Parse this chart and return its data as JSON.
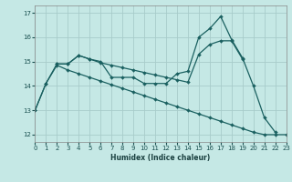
{
  "background_color": "#c5e8e5",
  "grid_color": "#a8ccca",
  "line_color": "#1a6060",
  "xlabel": "Humidex (Indice chaleur)",
  "xlim": [
    0,
    23
  ],
  "ylim": [
    11.7,
    17.3
  ],
  "yticks": [
    12,
    13,
    14,
    15,
    16,
    17
  ],
  "xticks": [
    0,
    1,
    2,
    3,
    4,
    5,
    6,
    7,
    8,
    9,
    10,
    11,
    12,
    13,
    14,
    15,
    16,
    17,
    18,
    19,
    20,
    21,
    22,
    23
  ],
  "line1_x": [
    0,
    1,
    2,
    3,
    4,
    5,
    6,
    7,
    8,
    9,
    10,
    11,
    12,
    13,
    14,
    15,
    16,
    17,
    18,
    19,
    20,
    21,
    22
  ],
  "line1_y": [
    13.0,
    14.1,
    14.9,
    14.9,
    15.25,
    15.1,
    15.0,
    14.35,
    14.35,
    14.35,
    14.1,
    14.1,
    14.1,
    14.5,
    14.6,
    16.0,
    16.35,
    16.85,
    15.9,
    15.15,
    14.0,
    12.7,
    12.1
  ],
  "line2_x": [
    2,
    3,
    4,
    5,
    6,
    7,
    8,
    9,
    10,
    11,
    12,
    13,
    14,
    15,
    16,
    17,
    18,
    19
  ],
  "line2_y": [
    14.9,
    14.9,
    15.25,
    15.1,
    14.95,
    14.85,
    14.75,
    14.65,
    14.55,
    14.45,
    14.35,
    14.25,
    14.15,
    15.3,
    15.7,
    15.85,
    15.85,
    15.1
  ],
  "line3_x": [
    0,
    1,
    2,
    3,
    4,
    5,
    6,
    7,
    8,
    9,
    10,
    11,
    12,
    13,
    14,
    15,
    16,
    17,
    18,
    19,
    20,
    21,
    22,
    23
  ],
  "line3_y": [
    13.0,
    14.1,
    14.85,
    14.65,
    14.5,
    14.35,
    14.2,
    14.05,
    13.9,
    13.75,
    13.6,
    13.45,
    13.3,
    13.15,
    13.0,
    12.85,
    12.7,
    12.55,
    12.4,
    12.25,
    12.1,
    12.0,
    12.0,
    12.0
  ]
}
